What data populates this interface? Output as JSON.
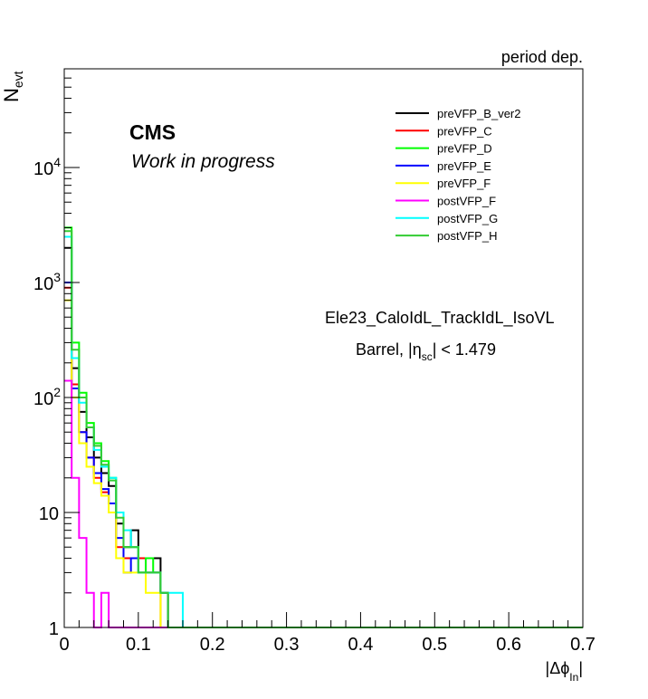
{
  "header": {
    "corner_label": "period dep."
  },
  "annotations": {
    "experiment": "CMS",
    "status": "Work in progress",
    "trigger": "Ele23_CaloIdL_TrackIdL_IsoVL",
    "region_prefix": "Barrel, |",
    "region_eta": "η",
    "region_sub": "sc",
    "region_suffix": "| < 1.479"
  },
  "chart_data": {
    "type": "line",
    "ylabel_main": "N",
    "ylabel_sub": "evt",
    "xlabel_prefix": "|Δϕ",
    "xlabel_sub": "In",
    "xlabel_suffix": "|",
    "xlim": [
      0,
      0.7
    ],
    "ylim": [
      1,
      60000
    ],
    "yscale": "log",
    "bin_width": 0.01,
    "x_ticks": [
      {
        "value": 0,
        "label": "0"
      },
      {
        "value": 0.1,
        "label": "0.1"
      },
      {
        "value": 0.2,
        "label": "0.2"
      },
      {
        "value": 0.3,
        "label": "0.3"
      },
      {
        "value": 0.4,
        "label": "0.4"
      },
      {
        "value": 0.5,
        "label": "0.5"
      },
      {
        "value": 0.6,
        "label": "0.6"
      },
      {
        "value": 0.7,
        "label": "0.7"
      }
    ],
    "y_ticks": [
      {
        "value": 1,
        "base": "1",
        "exp": ""
      },
      {
        "value": 10,
        "base": "10",
        "exp": ""
      },
      {
        "value": 100,
        "base": "10",
        "exp": "2"
      },
      {
        "value": 1000,
        "base": "10",
        "exp": "3"
      },
      {
        "value": 10000,
        "base": "10",
        "exp": "4"
      }
    ],
    "legend_position": "top-right",
    "series": [
      {
        "name": "preVFP_B_ver2",
        "color": "#000000",
        "values": [
          2000,
          180,
          75,
          45,
          30,
          22,
          17,
          8,
          5,
          7,
          4,
          4,
          4,
          2,
          1
        ]
      },
      {
        "name": "preVFP_C",
        "color": "#ff0000",
        "values": [
          900,
          130,
          50,
          30,
          20,
          15,
          12,
          5,
          4,
          4,
          4,
          3,
          3,
          1,
          1
        ]
      },
      {
        "name": "preVFP_D",
        "color": "#00ff00",
        "values": [
          3000,
          300,
          110,
          60,
          40,
          28,
          20,
          10,
          5,
          5,
          3,
          4,
          3,
          2,
          1
        ]
      },
      {
        "name": "preVFP_E",
        "color": "#0000ff",
        "values": [
          1000,
          120,
          50,
          30,
          22,
          16,
          12,
          6,
          3,
          4,
          3,
          3,
          3,
          2,
          1
        ]
      },
      {
        "name": "preVFP_F",
        "color": "#ffff00",
        "values": [
          700,
          100,
          40,
          25,
          18,
          14,
          10,
          4,
          3,
          3,
          3,
          2,
          2,
          1,
          1
        ]
      },
      {
        "name": "postVFP_F",
        "color": "#ff00ff",
        "values": [
          140,
          20,
          6,
          2,
          1,
          2,
          1,
          1,
          1,
          1,
          1,
          1,
          1,
          1,
          1
        ]
      },
      {
        "name": "postVFP_G",
        "color": "#00ffff",
        "values": [
          2500,
          220,
          90,
          55,
          35,
          25,
          20,
          10,
          7,
          5,
          3,
          3,
          3,
          2,
          2,
          2,
          1
        ]
      },
      {
        "name": "postVFP_H",
        "color": "#33cc33",
        "values": [
          2800,
          260,
          100,
          55,
          38,
          26,
          19,
          9,
          5,
          5,
          3,
          3,
          3,
          2,
          1
        ]
      }
    ]
  }
}
